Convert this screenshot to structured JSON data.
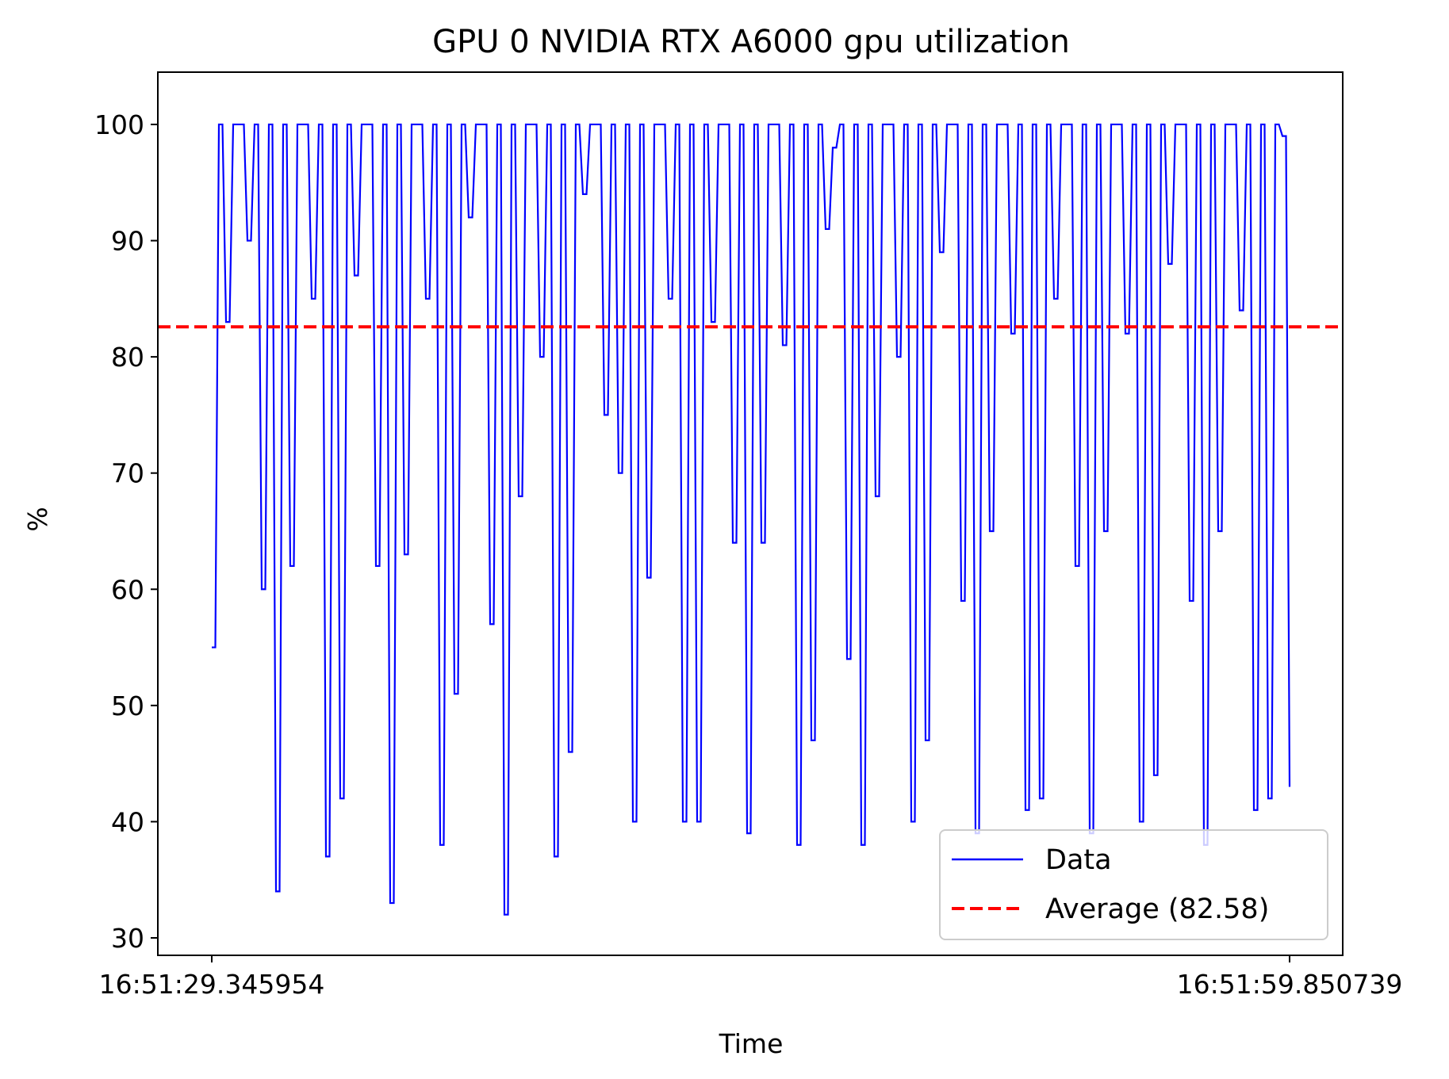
{
  "chart_data": {
    "type": "line",
    "title": "GPU 0 NVIDIA RTX A6000 gpu utilization",
    "xlabel": "Time",
    "ylabel": "%",
    "x_tick_labels": [
      "16:51:29.345954",
      "16:51:59.850739"
    ],
    "yticks": [
      30,
      40,
      50,
      60,
      70,
      80,
      90,
      100
    ],
    "ylim": [
      28.5,
      104.5
    ],
    "grid": false,
    "legend_position": "lower-right",
    "series": [
      {
        "name": "Data",
        "color": "#0000ff",
        "style": "solid",
        "values": [
          55,
          55,
          100,
          100,
          83,
          83,
          100,
          100,
          100,
          100,
          90,
          90,
          100,
          100,
          60,
          60,
          100,
          100,
          34,
          34,
          100,
          100,
          62,
          62,
          100,
          100,
          100,
          100,
          85,
          85,
          100,
          100,
          37,
          37,
          100,
          100,
          42,
          42,
          100,
          100,
          87,
          87,
          100,
          100,
          100,
          100,
          62,
          62,
          100,
          100,
          33,
          33,
          100,
          100,
          63,
          63,
          100,
          100,
          100,
          100,
          85,
          85,
          100,
          100,
          38,
          38,
          100,
          100,
          51,
          51,
          100,
          100,
          92,
          92,
          100,
          100,
          100,
          100,
          57,
          57,
          100,
          100,
          32,
          32,
          100,
          100,
          68,
          68,
          100,
          100,
          100,
          100,
          80,
          80,
          100,
          100,
          37,
          37,
          100,
          100,
          46,
          46,
          100,
          100,
          94,
          94,
          100,
          100,
          100,
          100,
          75,
          75,
          100,
          100,
          70,
          70,
          100,
          100,
          40,
          40,
          100,
          100,
          61,
          61,
          100,
          100,
          100,
          100,
          85,
          85,
          100,
          100,
          40,
          40,
          100,
          100,
          40,
          40,
          100,
          100,
          83,
          83,
          100,
          100,
          100,
          100,
          64,
          64,
          100,
          100,
          39,
          39,
          100,
          100,
          64,
          64,
          100,
          100,
          100,
          100,
          81,
          81,
          100,
          100,
          38,
          38,
          100,
          100,
          47,
          47,
          100,
          100,
          91,
          91,
          98,
          98,
          100,
          100,
          54,
          54,
          100,
          100,
          38,
          38,
          100,
          100,
          68,
          68,
          100,
          100,
          100,
          100,
          80,
          80,
          100,
          100,
          40,
          40,
          100,
          100,
          47,
          47,
          100,
          100,
          89,
          89,
          100,
          100,
          100,
          100,
          59,
          59,
          100,
          100,
          39,
          39,
          100,
          100,
          65,
          65,
          100,
          100,
          100,
          100,
          82,
          82,
          100,
          100,
          41,
          41,
          100,
          100,
          42,
          42,
          100,
          100,
          85,
          85,
          100,
          100,
          100,
          100,
          62,
          62,
          100,
          100,
          39,
          39,
          100,
          100,
          65,
          65,
          100,
          100,
          100,
          100,
          82,
          82,
          100,
          100,
          40,
          40,
          100,
          100,
          44,
          44,
          100,
          100,
          88,
          88,
          100,
          100,
          100,
          100,
          59,
          59,
          100,
          100,
          38,
          38,
          100,
          100,
          65,
          65,
          100,
          100,
          100,
          100,
          84,
          84,
          100,
          100,
          41,
          41,
          100,
          100,
          42,
          42,
          100,
          100,
          99,
          99,
          43
        ]
      },
      {
        "name": "Average (82.58)",
        "color": "#ff0000",
        "style": "dashed",
        "value": 82.58
      }
    ]
  }
}
